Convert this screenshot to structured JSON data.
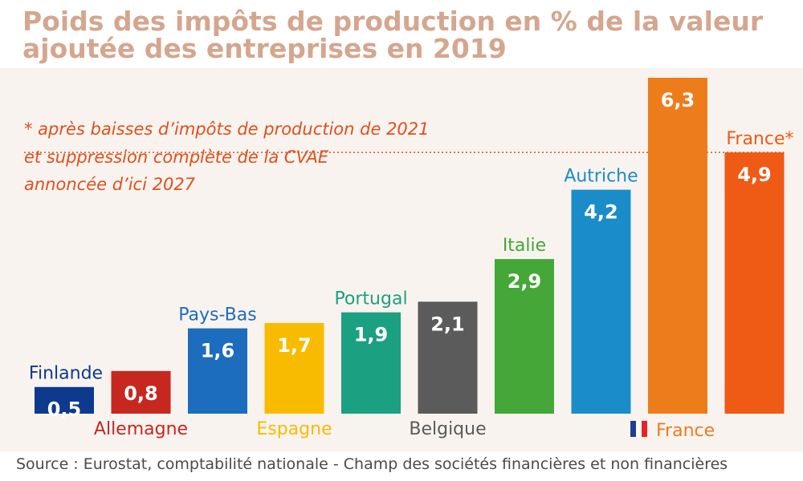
{
  "title": "Poids des impôts de production en % de la valeur ajoutée des entreprises en 2019",
  "source": "Source : Eurostat, comptabilité nationale - Champ des sociétés financières et non financières",
  "chart_data": {
    "type": "bar",
    "title": "Poids des impôts de production en % de la valeur ajoutée des entreprises en 2019",
    "xlabel": "",
    "ylabel": "",
    "ylim": [
      0,
      6.3
    ],
    "categories": [
      "Finlande",
      "Allemagne",
      "Pays-Bas",
      "Espagne",
      "Portugal",
      "Belgique",
      "Italie",
      "Autriche",
      "France",
      "France*"
    ],
    "values": [
      0.5,
      0.8,
      1.6,
      1.7,
      1.9,
      2.1,
      2.9,
      4.2,
      6.3,
      4.9
    ],
    "value_labels": [
      "0,5",
      "0,8",
      "1,6",
      "1,7",
      "1,9",
      "2,1",
      "2,9",
      "4,2",
      "6,3",
      "4,9"
    ],
    "colors": [
      "#0d3a8c",
      "#c62820",
      "#1c6dbd",
      "#f9bb00",
      "#1ba082",
      "#5b5b5b",
      "#44a738",
      "#1a8dc8",
      "#ed7d1b",
      "#ef5a14"
    ],
    "label_positions": [
      "top",
      "bottom",
      "top",
      "bottom",
      "top",
      "bottom",
      "top",
      "top",
      "bottom",
      "top"
    ],
    "flag_marker": "🇫🇷",
    "annotation": {
      "lines": [
        "* après baisses d’impôts de production de 2021",
        "et suppression complète de la CVAE",
        "annoncée d’ici 2027"
      ],
      "reference_value": 4.9
    }
  }
}
